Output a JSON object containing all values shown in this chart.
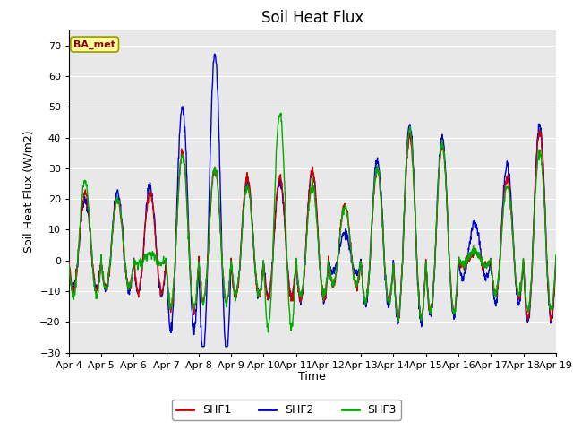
{
  "title": "Soil Heat Flux",
  "ylabel": "Soil Heat Flux (W/m2)",
  "xlabel": "Time",
  "ylim": [
    -30,
    75
  ],
  "yticks": [
    -30,
    -20,
    -10,
    0,
    10,
    20,
    30,
    40,
    50,
    60,
    70
  ],
  "line_colors": {
    "SHF1": "#cc0000",
    "SHF2": "#0000cc",
    "SHF3": "#00aa00"
  },
  "line_width": 1.0,
  "outer_bg": "#ffffff",
  "plot_bg": "#e8e8e8",
  "grid_color": "#ffffff",
  "legend_label": "BA_met",
  "xtick_labels": [
    "Apr 4",
    "Apr 5",
    "Apr 6",
    "Apr 7",
    "Apr 8",
    "Apr 9",
    "Apr 10",
    "Apr 11",
    "Apr 12",
    "Apr 13",
    "Apr 14",
    "Apr 15",
    "Apr 16",
    "Apr 17",
    "Apr 18",
    "Apr 19"
  ],
  "series_names": [
    "SHF1",
    "SHF2",
    "SHF3"
  ],
  "title_fontsize": 12,
  "axis_fontsize": 9,
  "tick_fontsize": 8
}
